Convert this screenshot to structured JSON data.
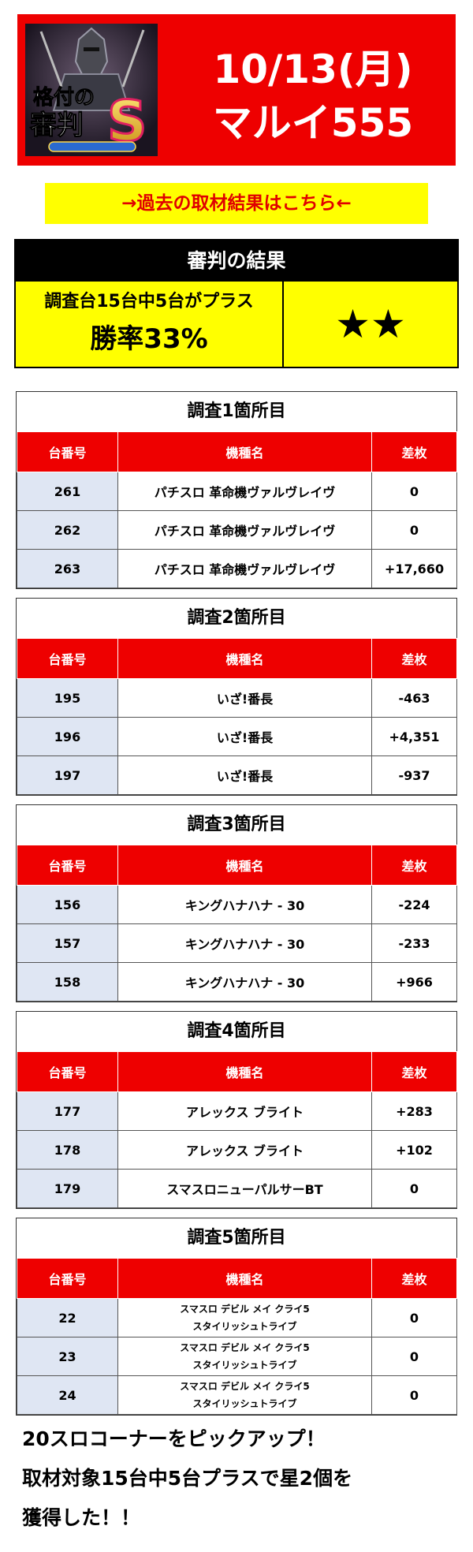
{
  "banner": {
    "logo_text": [
      "格付の",
      "審判",
      "S"
    ],
    "date": "10/13(月)",
    "store": "マルイ555"
  },
  "past_link": "→過去の取材結果はこちら←",
  "result": {
    "heading": "審判の結果",
    "line1": "調査台15台中5台がプラス",
    "line2": "勝率33%",
    "stars": "★★"
  },
  "surveys": [
    {
      "title": "調査1箇所目",
      "headers": [
        "台番号",
        "機種名",
        "差枚"
      ],
      "rows": [
        {
          "num": "261",
          "model": "パチスロ 革命機ヴァルヴレイヴ",
          "diff": "0"
        },
        {
          "num": "262",
          "model": "パチスロ 革命機ヴァルヴレイヴ",
          "diff": "0"
        },
        {
          "num": "263",
          "model": "パチスロ 革命機ヴァルヴレイヴ",
          "diff": "+17,660"
        }
      ]
    },
    {
      "title": "調査2箇所目",
      "headers": [
        "台番号",
        "機種名",
        "差枚"
      ],
      "rows": [
        {
          "num": "195",
          "model": "いざ!番長",
          "diff": "-463"
        },
        {
          "num": "196",
          "model": "いざ!番長",
          "diff": "+4,351"
        },
        {
          "num": "197",
          "model": "いざ!番長",
          "diff": "-937"
        }
      ]
    },
    {
      "title": "調査3箇所目",
      "headers": [
        "台番号",
        "機種名",
        "差枚"
      ],
      "rows": [
        {
          "num": "156",
          "model": "キングハナハナ - 30",
          "diff": "-224"
        },
        {
          "num": "157",
          "model": "キングハナハナ - 30",
          "diff": "-233"
        },
        {
          "num": "158",
          "model": "キングハナハナ - 30",
          "diff": "+966"
        }
      ]
    },
    {
      "title": "調査4箇所目",
      "headers": [
        "台番号",
        "機種名",
        "差枚"
      ],
      "rows": [
        {
          "num": "177",
          "model": "アレックス ブライト",
          "diff": "+283"
        },
        {
          "num": "178",
          "model": "アレックス ブライト",
          "diff": "+102"
        },
        {
          "num": "179",
          "model": "スマスロニューパルサーBT",
          "diff": "0"
        }
      ]
    },
    {
      "title": "調査5箇所目",
      "headers": [
        "台番号",
        "機種名",
        "差枚"
      ],
      "rows": [
        {
          "num": "22",
          "model": "スマスロ デビル メイ クライ5 スタイリッシュトライブ",
          "model_lines": [
            "スマスロ デビル メイ クライ5",
            "スタイリッシュトライブ"
          ],
          "diff": "0"
        },
        {
          "num": "23",
          "model": "スマスロ デビル メイ クライ5 スタイリッシュトライブ",
          "model_lines": [
            "スマスロ デビル メイ クライ5",
            "スタイリッシュトライブ"
          ],
          "diff": "0"
        },
        {
          "num": "24",
          "model": "スマスロ デビル メイ クライ5 スタイリッシュトライブ",
          "model_lines": [
            "スマスロ デビル メイ クライ5",
            "スタイリッシュトライブ"
          ],
          "diff": "0"
        }
      ]
    }
  ],
  "summary": [
    "20スロコーナーをピックアップ！",
    "取材対象15台中5台プラスで星2個を",
    "獲得した！！"
  ],
  "colors": {
    "banner_red": "#ee0000",
    "link_yellow": "#ffff00",
    "link_text_red": "#e00000",
    "table_header_red": "#ee0000",
    "number_cell_blue": "#dfe6f3"
  }
}
